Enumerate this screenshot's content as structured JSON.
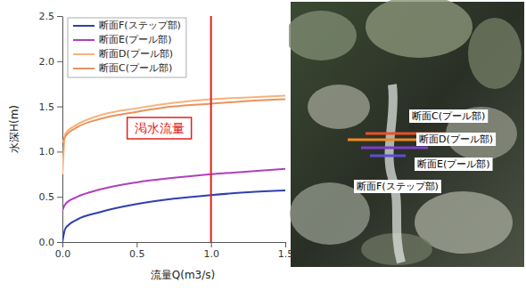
{
  "chart_data": {
    "type": "line",
    "xlabel": "流量Q(m3/s)",
    "ylabel": "水深H(m)",
    "x": [
      0,
      0.02,
      0.1,
      0.25,
      0.5,
      0.75,
      1.0,
      1.25,
      1.5
    ],
    "series": [
      {
        "name": "断面F(ステップ部)",
        "color": "#2e3fb0",
        "values": [
          0.0,
          0.15,
          0.25,
          0.33,
          0.42,
          0.48,
          0.52,
          0.55,
          0.57
        ]
      },
      {
        "name": "断面E(プール部)",
        "color": "#b03fbf",
        "values": [
          0.35,
          0.42,
          0.5,
          0.58,
          0.66,
          0.71,
          0.75,
          0.78,
          0.81
        ]
      },
      {
        "name": "断面D(プール部)",
        "color": "#f7b27b",
        "values": [
          0.75,
          1.2,
          1.3,
          1.4,
          1.48,
          1.54,
          1.58,
          1.6,
          1.62
        ]
      },
      {
        "name": "断面C(プール部)",
        "color": "#e9925d",
        "values": [
          1.1,
          1.17,
          1.27,
          1.36,
          1.44,
          1.5,
          1.53,
          1.56,
          1.58
        ]
      }
    ],
    "xlim": [
      0,
      1.5
    ],
    "xticks": [
      {
        "value": 0,
        "label": "0.0"
      },
      {
        "value": 0.5,
        "label": "0.5"
      },
      {
        "value": 1.0,
        "label": "1.0"
      },
      {
        "value": 1.5,
        "label": "1.5"
      }
    ],
    "ylim": [
      0,
      2.5
    ],
    "yticks": [
      {
        "value": 0,
        "label": "0.0"
      },
      {
        "value": 0.5,
        "label": "0.5"
      },
      {
        "value": 1.0,
        "label": "1.0"
      },
      {
        "value": 1.5,
        "label": "1.5"
      },
      {
        "value": 2.0,
        "label": "2.0"
      },
      {
        "value": 2.5,
        "label": "2.5"
      }
    ],
    "legend": "upper left",
    "grid": false,
    "annotations": [
      {
        "text": "渇水流量",
        "x": 1.0,
        "color": "#e02020"
      }
    ]
  },
  "photo": {
    "labels": [
      {
        "text": "断面C(プール部)",
        "color": "#e8502a"
      },
      {
        "text": "断面D(プール部)",
        "color": "#f08a20"
      },
      {
        "text": "断面E(プール部)",
        "color": "#7a3fc8"
      },
      {
        "text": "断面F(ステップ部)",
        "color": "#5a4fd8"
      }
    ]
  }
}
